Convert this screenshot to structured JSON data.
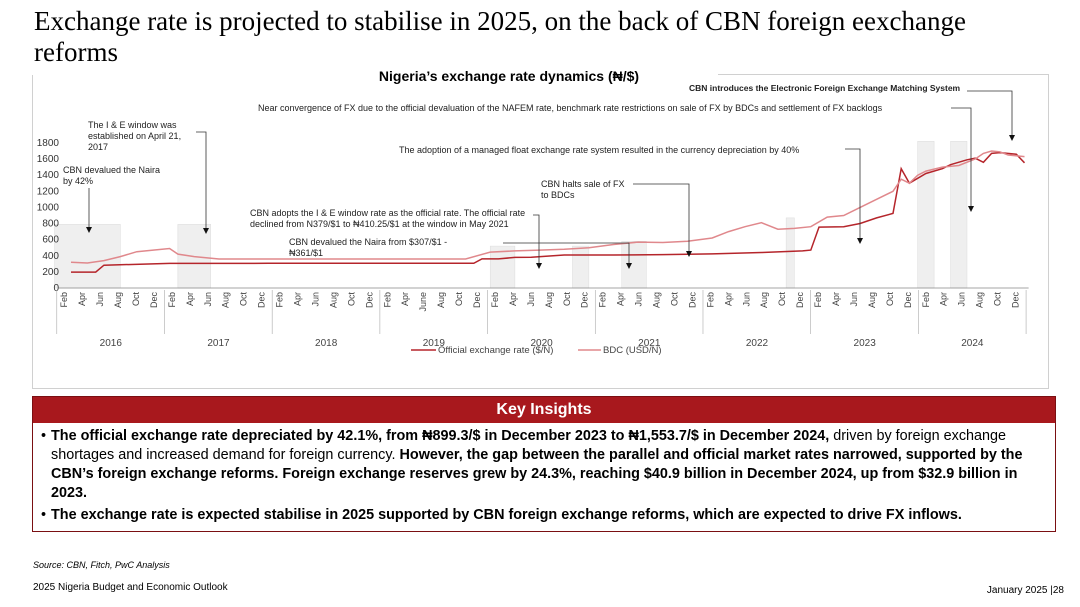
{
  "title": "Exchange rate is projected to stabilise in 2025, on the back of CBN foreign eexchange reforms",
  "chart_title": "Nigeria’s exchange rate dynamics (₦/$)",
  "chart_data": {
    "type": "line",
    "title": "Nigeria’s exchange rate dynamics (₦/$)",
    "ylim": [
      0,
      1800
    ],
    "yticks": [
      0,
      200,
      400,
      600,
      800,
      1000,
      1200,
      1400,
      1600,
      1800
    ],
    "month_ticks": [
      "Feb",
      "Apr",
      "Jun",
      "Aug",
      "Oct",
      "Dec",
      "Feb",
      "Apr",
      "Jun",
      "Aug",
      "Oct",
      "Dec",
      "Feb",
      "Apr",
      "Jun",
      "Aug",
      "Oct",
      "Dec",
      "Feb",
      "Apr",
      "June",
      "Aug",
      "Oct",
      "Dec",
      "Feb",
      "Apr",
      "Jun",
      "Aug",
      "Oct",
      "Dec",
      "Feb",
      "Apr",
      "Jun",
      "Aug",
      "Oct",
      "Dec",
      "Feb",
      "Apr",
      "Jun",
      "Aug",
      "Oct",
      "Dec",
      "Feb",
      "Apr",
      "Jun",
      "Aug",
      "Oct",
      "Dec",
      "Feb",
      "Apr",
      "Jun",
      "Aug",
      "Oct",
      "Dec"
    ],
    "years": [
      "2016",
      "2017",
      "2018",
      "2019",
      "2020",
      "2021",
      "2022",
      "2023",
      "2024"
    ],
    "series": [
      {
        "name": "Official exchange rate ($/N)",
        "color": "#b5252b",
        "points": [
          [
            0,
            197
          ],
          [
            3,
            197
          ],
          [
            4,
            283
          ],
          [
            12,
            305
          ],
          [
            24,
            306
          ],
          [
            36,
            306
          ],
          [
            49,
            306
          ],
          [
            50,
            361
          ],
          [
            52,
            361
          ],
          [
            54,
            380
          ],
          [
            56,
            381
          ],
          [
            60,
            410
          ],
          [
            66,
            410
          ],
          [
            72,
            414
          ],
          [
            78,
            423
          ],
          [
            84,
            440
          ],
          [
            89,
            460
          ],
          [
            90,
            470
          ],
          [
            91,
            755
          ],
          [
            94,
            760
          ],
          [
            96,
            800
          ],
          [
            98,
            870
          ],
          [
            100,
            925
          ],
          [
            101,
            1480
          ],
          [
            102,
            1300
          ],
          [
            104,
            1420
          ],
          [
            106,
            1480
          ],
          [
            107,
            1530
          ],
          [
            109,
            1590
          ],
          [
            110,
            1610
          ],
          [
            111,
            1560
          ],
          [
            112,
            1670
          ],
          [
            113,
            1680
          ],
          [
            115,
            1660
          ],
          [
            116,
            1553
          ]
        ]
      },
      {
        "name": "BDC (USD/N)",
        "color": "#e0888c",
        "points": [
          [
            0,
            320
          ],
          [
            2,
            310
          ],
          [
            4,
            340
          ],
          [
            6,
            390
          ],
          [
            8,
            450
          ],
          [
            10,
            470
          ],
          [
            12,
            490
          ],
          [
            13,
            420
          ],
          [
            15,
            390
          ],
          [
            18,
            360
          ],
          [
            24,
            360
          ],
          [
            36,
            360
          ],
          [
            48,
            360
          ],
          [
            51,
            445
          ],
          [
            54,
            460
          ],
          [
            57,
            470
          ],
          [
            60,
            480
          ],
          [
            63,
            500
          ],
          [
            66,
            540
          ],
          [
            69,
            570
          ],
          [
            72,
            565
          ],
          [
            75,
            580
          ],
          [
            78,
            620
          ],
          [
            80,
            700
          ],
          [
            82,
            760
          ],
          [
            84,
            810
          ],
          [
            86,
            730
          ],
          [
            88,
            740
          ],
          [
            90,
            760
          ],
          [
            92,
            880
          ],
          [
            94,
            900
          ],
          [
            96,
            1000
          ],
          [
            98,
            1100
          ],
          [
            100,
            1200
          ],
          [
            101,
            1350
          ],
          [
            102,
            1300
          ],
          [
            103,
            1400
          ],
          [
            104,
            1450
          ],
          [
            106,
            1500
          ],
          [
            108,
            1520
          ],
          [
            110,
            1600
          ],
          [
            111,
            1670
          ],
          [
            112,
            1700
          ],
          [
            113,
            1690
          ],
          [
            114,
            1650
          ],
          [
            116,
            1630
          ]
        ]
      }
    ],
    "legend": [
      "Official exchange rate ($/N)",
      "BDC (USD/N)"
    ],
    "annotations": [
      "CBN devalued the Naira by 42%",
      "The I & E window was established on April 21, 2017",
      "CBN adopts the I & E window rate as the official rate. The official rate declined from N379/$1 to ₦410.25/$1 at the window in May 2021",
      "CBN devalued the Naira from $307/$1 - ₦361/$1",
      "CBN halts sale of FX to BDCs",
      "Near convergence of FX due to the official devaluation of the NAFEM rate, benchmark rate restrictions on sale of FX by BDCs and settlement of FX backlogs",
      "The adoption of a managed float exchange rate system resulted in the currency depreciation by 40%",
      "CBN introduces the Electronic Foreign Exchange Matching System"
    ]
  },
  "insights": {
    "header": "Key Insights",
    "b1_bold": "The official exchange rate depreciated by 42.1%, from ₦899.3/$ in December 2023 to ₦1,553.7/$ in December 2024,",
    "b1_normal": " driven by foreign exchange shortages and increased demand for foreign currency.",
    "b1_bold2": " However, the gap between the parallel and official market rates narrowed, supported by the CBN’s foreign exchange reforms. Foreign exchange reserves grew by 24.3%, reaching $40.9 billion in December 2024, up from $32.9 billion in 2023.",
    "b2_bold": "The exchange rate is expected stabilise in 2025 supported by CBN foreign exchange reforms, which are expected to drive FX inflows."
  },
  "source": "Source: CBN, Fitch, PwC Analysis",
  "footer_left": "2025 Nigeria Budget and Economic Outlook",
  "footer_right": "January 2025 |28"
}
